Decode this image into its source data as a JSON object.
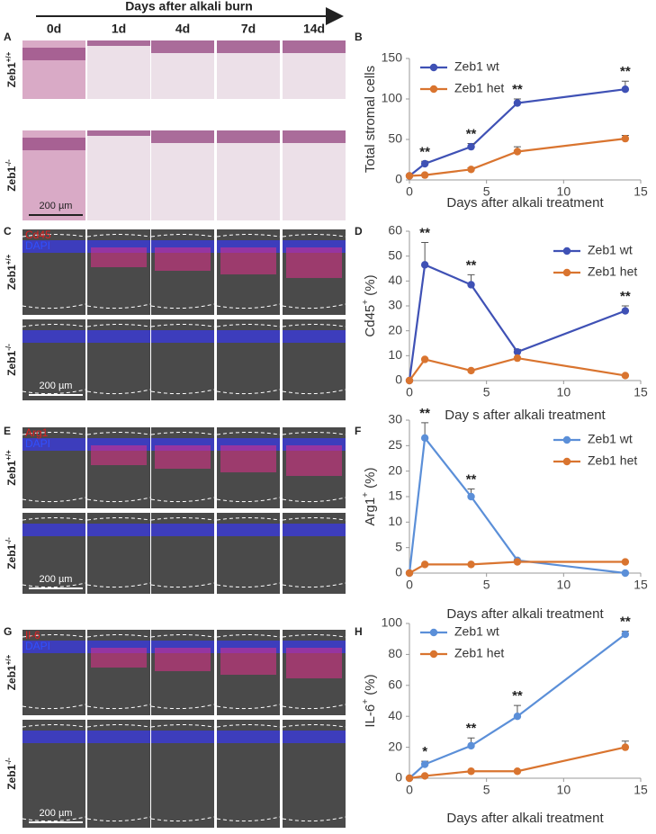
{
  "figure": {
    "title": "Days after alkali burn",
    "columns": [
      "0d",
      "1d",
      "4d",
      "7d",
      "14d"
    ],
    "panels": [
      {
        "label": "A",
        "rows": [
          {
            "base": "Zeb1",
            "sup": "+/+"
          },
          {
            "base": "Zeb1",
            "sup": "-/-"
          }
        ],
        "scale": "200 µm"
      },
      {
        "label": "C",
        "stains": [
          "Cd45",
          "DAPI"
        ],
        "rows": [
          {
            "base": "Zeb1",
            "sup": "+/+"
          },
          {
            "base": "Zeb1",
            "sup": "-/-"
          }
        ],
        "scale": "200 µm"
      },
      {
        "label": "E",
        "stains": [
          "Arg1",
          "DAPI"
        ],
        "rows": [
          {
            "base": "Zeb1",
            "sup": "+/+"
          },
          {
            "base": "Zeb1",
            "sup": "-/-"
          }
        ],
        "scale": "200 µm"
      },
      {
        "label": "G",
        "stains": [
          "Il-6",
          "DAPI"
        ],
        "rows": [
          {
            "base": "Zeb1",
            "sup": "+/+"
          },
          {
            "base": "Zeb1",
            "sup": "-/-"
          }
        ],
        "scale": "200 µm"
      }
    ]
  },
  "chart_data": [
    {
      "type": "line",
      "panel": "B",
      "xlabel": "Days after alkali treatment",
      "ylabel": [
        "Total stromal cells"
      ],
      "x": [
        0,
        1,
        4,
        7,
        14
      ],
      "xlim": [
        0,
        15
      ],
      "xticks": [
        0,
        5,
        10,
        15
      ],
      "ylim": [
        0,
        150
      ],
      "yticks": [
        0,
        50,
        100,
        150
      ],
      "legend": "upper left",
      "series": [
        {
          "name": "Zeb1 wt",
          "color": "#3f51b5",
          "values": [
            5,
            20,
            41,
            95,
            112
          ],
          "errors": [
            0,
            3,
            4,
            5,
            10
          ]
        },
        {
          "name": "Zeb1 het",
          "color": "#d9742f",
          "values": [
            5,
            6,
            13,
            35,
            51
          ],
          "errors": [
            0,
            1,
            2,
            6,
            4
          ]
        }
      ],
      "annotations": [
        {
          "x": 1,
          "text": "**"
        },
        {
          "x": 4,
          "text": "**"
        },
        {
          "x": 7,
          "text": "**"
        },
        {
          "x": 14,
          "text": "**"
        }
      ]
    },
    {
      "type": "line",
      "panel": "D",
      "xlabel": "Day s after alkali treatment",
      "ylabel": [
        "Cd45",
        "+",
        " (%)"
      ],
      "x": [
        0,
        1,
        4,
        7,
        14
      ],
      "xlim": [
        0,
        15
      ],
      "xticks": [
        0,
        5,
        10,
        15
      ],
      "ylim": [
        0,
        60
      ],
      "yticks": [
        0,
        10,
        20,
        30,
        40,
        50,
        60
      ],
      "legend": "upper right",
      "series": [
        {
          "name": "Zeb1 wt",
          "color": "#3f51b5",
          "values": [
            0,
            46.5,
            38.5,
            11.5,
            28
          ],
          "errors": [
            0,
            9,
            4,
            1,
            2
          ]
        },
        {
          "name": "Zeb1 het",
          "color": "#d9742f",
          "values": [
            0,
            8.5,
            4,
            9,
            2
          ],
          "errors": [
            0,
            0,
            0,
            0,
            0
          ]
        }
      ],
      "annotations": [
        {
          "x": 1,
          "text": "**"
        },
        {
          "x": 4,
          "text": "**"
        },
        {
          "x": 14,
          "text": "**"
        }
      ]
    },
    {
      "type": "line",
      "panel": "F",
      "xlabel": "Days after alkali treatment",
      "ylabel": [
        "Arg1",
        "+",
        " (%)"
      ],
      "x": [
        0,
        1,
        4,
        7,
        14
      ],
      "xlim": [
        0,
        15
      ],
      "xticks": [
        0,
        5,
        10,
        15
      ],
      "ylim": [
        0,
        30
      ],
      "yticks": [
        0,
        5,
        10,
        15,
        20,
        25,
        30
      ],
      "legend": "upper right",
      "series": [
        {
          "name": "Zeb1 wt",
          "color": "#5b8fd8",
          "values": [
            0,
            26.5,
            15,
            2.5,
            0
          ],
          "errors": [
            0,
            3,
            1.5,
            0,
            0
          ]
        },
        {
          "name": "Zeb1 het",
          "color": "#d9742f",
          "values": [
            0,
            1.7,
            1.7,
            2.2,
            2.2
          ],
          "errors": [
            0,
            0,
            0,
            0,
            0
          ]
        }
      ],
      "annotations": [
        {
          "x": 1,
          "text": "**"
        },
        {
          "x": 4,
          "text": "**"
        }
      ]
    },
    {
      "type": "line",
      "panel": "H",
      "xlabel": "Days after alkali treatment",
      "ylabel": [
        "IL-6",
        "+",
        " (%)"
      ],
      "x": [
        0,
        1,
        4,
        7,
        14
      ],
      "xlim": [
        0,
        15
      ],
      "xticks": [
        0,
        5,
        10,
        15
      ],
      "ylim": [
        0,
        100
      ],
      "yticks": [
        0,
        20,
        40,
        60,
        80,
        100
      ],
      "legend": "upper left",
      "series": [
        {
          "name": "Zeb1 wt",
          "color": "#5b8fd8",
          "values": [
            0,
            9,
            21,
            40,
            93
          ],
          "errors": [
            0,
            2,
            5,
            7,
            2
          ]
        },
        {
          "name": "Zeb1 het",
          "color": "#d9742f",
          "values": [
            0,
            1.5,
            4.5,
            4.5,
            20
          ],
          "errors": [
            0,
            0,
            0,
            0,
            4
          ]
        }
      ],
      "annotations": [
        {
          "x": 1,
          "text": "*"
        },
        {
          "x": 4,
          "text": "**"
        },
        {
          "x": 7,
          "text": "**"
        },
        {
          "x": 14,
          "text": "**"
        }
      ]
    }
  ]
}
